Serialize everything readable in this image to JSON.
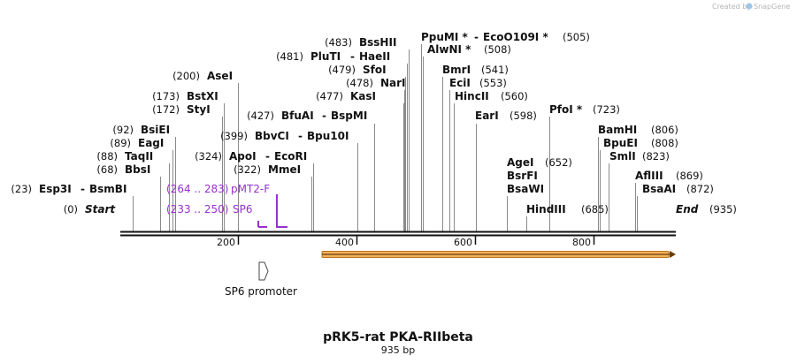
{
  "credit": "Created by",
  "brand": "SnapGene",
  "map": {
    "title": "pRK5-rat PKA-RIIbeta",
    "length_label": "935 bp",
    "start_label": "Start",
    "start_pos": "(0)",
    "end_label": "End",
    "end_pos": "(935)",
    "total_bp": 935,
    "ticks": [
      "200",
      "400",
      "600",
      "800"
    ],
    "tick_values": [
      200,
      400,
      600,
      800
    ]
  },
  "sites": [
    {
      "pos": "(23)",
      "name": "Esp3I",
      "name2": "BsmBI",
      "bp": 23
    },
    {
      "pos": "(68)",
      "name": "BbsI",
      "bp": 68
    },
    {
      "pos": "(88)",
      "name": "TaqII",
      "bp": 88
    },
    {
      "pos": "(89)",
      "name": "EagI",
      "bp": 89
    },
    {
      "pos": "(92)",
      "name": "BsiEI",
      "bp": 92
    },
    {
      "pos": "(172)",
      "name": "StyI",
      "bp": 172
    },
    {
      "pos": "(173)",
      "name": "BstXI",
      "bp": 173
    },
    {
      "pos": "(200)",
      "name": "AseI",
      "bp": 200
    },
    {
      "pos": "(322)",
      "name": "MmeI",
      "bp": 322
    },
    {
      "pos": "(324)",
      "name": "ApoI",
      "name2": "EcoRI",
      "bp": 324
    },
    {
      "pos": "(399)",
      "name": "BbvCI",
      "name2": "Bpu10I",
      "bp": 399
    },
    {
      "pos": "(427)",
      "name": "BfuAI",
      "name2": "BspMI",
      "bp": 427
    },
    {
      "pos": "(477)",
      "name": "KasI",
      "bp": 477
    },
    {
      "pos": "(478)",
      "name": "NarI",
      "bp": 478
    },
    {
      "pos": "(479)",
      "name": "SfoI",
      "bp": 479
    },
    {
      "pos": "(481)",
      "name": "PluTI",
      "name2": "HaeII",
      "bp": 481
    },
    {
      "pos": "(483)",
      "name": "BssHII",
      "bp": 483
    },
    {
      "pos": "(505)",
      "name": "PpuMI *",
      "name2": "EcoO109I *",
      "bp": 505
    },
    {
      "pos": "(508)",
      "name": "AlwNI *",
      "bp": 508
    },
    {
      "pos": "(541)",
      "name": "BmrI",
      "bp": 541
    },
    {
      "pos": "(553)",
      "name": "EciI",
      "bp": 553
    },
    {
      "pos": "(560)",
      "name": "HincII",
      "bp": 560
    },
    {
      "pos": "(598)",
      "name": "EarI",
      "bp": 598
    },
    {
      "pos": "(652)",
      "name": "AgeI",
      "name2": "BsrFI",
      "name3": "BsaWI",
      "bp": 652
    },
    {
      "pos": "(685)",
      "name": "HindIII",
      "bp": 685
    },
    {
      "pos": "(723)",
      "name": "PfoI *",
      "bp": 723
    },
    {
      "pos": "(806)",
      "name": "BamHI",
      "bp": 806
    },
    {
      "pos": "(808)",
      "name": "BpuEI",
      "bp": 808
    },
    {
      "pos": "(823)",
      "name": "SmlI",
      "bp": 823
    },
    {
      "pos": "(869)",
      "name": "AflIII",
      "bp": 869
    },
    {
      "pos": "(872)",
      "name": "BsaAI",
      "bp": 872
    }
  ],
  "primers": [
    {
      "range": "(264 .. 283)",
      "name": "pMT2-F"
    },
    {
      "range": "(233 .. 250)",
      "name": "SP6"
    }
  ],
  "features": [
    {
      "name": "SP6 promoter",
      "type": "promoter"
    },
    {
      "name": "",
      "type": "orf",
      "color": "#f2b15a"
    }
  ],
  "colors": {
    "primer": "#9a2fcf",
    "orf": "#f2b15a",
    "orf_border": "#b8741c"
  }
}
